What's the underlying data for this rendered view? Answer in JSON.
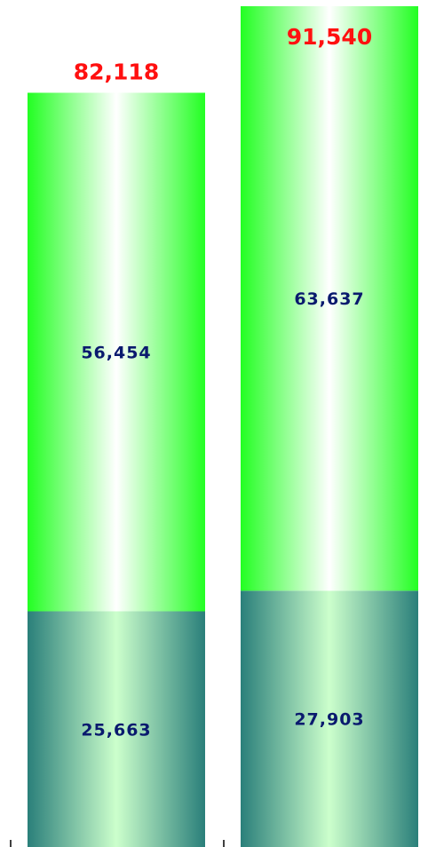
{
  "chart_data": {
    "type": "bar",
    "stacked": true,
    "categories": [
      "",
      ""
    ],
    "series": [
      {
        "values": [
          25663,
          27903
        ],
        "value_labels": [
          "25,663",
          "27,903"
        ],
        "color": "#2a7f7a"
      },
      {
        "values": [
          56454,
          63637
        ],
        "value_labels": [
          "56,454",
          "63,637"
        ],
        "color": "#22ff22"
      }
    ],
    "totals": [
      82118,
      91540
    ],
    "total_labels": [
      "82,118",
      "91,540"
    ],
    "total_label_color": "#ff0000",
    "value_label_color": "#0a1a6e",
    "legend": "none",
    "grid": false
  }
}
